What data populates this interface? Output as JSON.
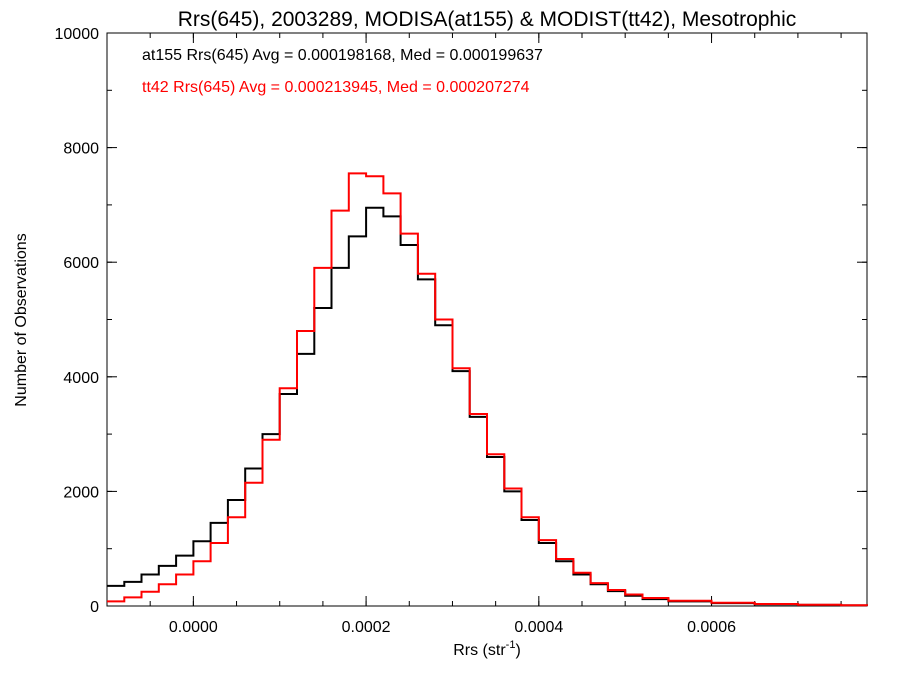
{
  "chart_data": {
    "type": "line",
    "title": "Rrs(645), 2003289, MODISA(at155) & MODIST(tt42), Mesotrophic",
    "xlabel": "Rrs (str",
    "xlabel_sup": "-1",
    "xlabel_end": ")",
    "ylabel": "Number of Observations",
    "xlim": [
      -0.0001,
      0.00078
    ],
    "ylim": [
      0,
      10000
    ],
    "x_ticks": [
      0.0,
      0.0002,
      0.0004,
      0.0006
    ],
    "x_tick_labels": [
      "0.0000",
      "0.0002",
      "0.0004",
      "0.0006"
    ],
    "y_ticks": [
      0,
      2000,
      4000,
      6000,
      8000,
      10000
    ],
    "y_tick_labels": [
      "0",
      "2000",
      "4000",
      "6000",
      "8000",
      "10000"
    ],
    "grid": false,
    "legend_placement": "top-left",
    "step": true,
    "series": [
      {
        "name": "at155 Rrs(645) Avg = 0.000198168, Med = 0.000199637",
        "color": "#000000",
        "x": [
          -0.0001,
          -8e-05,
          -6e-05,
          -4e-05,
          -2e-05,
          0.0,
          2e-05,
          4e-05,
          6e-05,
          8e-05,
          0.0001,
          0.00012,
          0.00014,
          0.00016,
          0.00018,
          0.0002,
          0.00022,
          0.00024,
          0.00026,
          0.00028,
          0.0003,
          0.00032,
          0.00034,
          0.00036,
          0.00038,
          0.0004,
          0.00042,
          0.00044,
          0.00046,
          0.00048,
          0.0005,
          0.00052,
          0.00055,
          0.0006,
          0.00065,
          0.0007,
          0.00075,
          0.00078
        ],
        "values": [
          350,
          420,
          550,
          700,
          880,
          1130,
          1450,
          1850,
          2400,
          3000,
          3700,
          4400,
          5200,
          5900,
          6450,
          6950,
          6800,
          6300,
          5700,
          4900,
          4100,
          3300,
          2600,
          2000,
          1500,
          1100,
          780,
          550,
          380,
          260,
          180,
          120,
          80,
          50,
          30,
          20,
          10,
          5
        ]
      },
      {
        "name": "tt42 Rrs(645) Avg = 0.000213945, Med = 0.000207274",
        "color": "#ff0000",
        "x": [
          -0.0001,
          -8e-05,
          -6e-05,
          -4e-05,
          -2e-05,
          0.0,
          2e-05,
          4e-05,
          6e-05,
          8e-05,
          0.0001,
          0.00012,
          0.00014,
          0.00016,
          0.00018,
          0.0002,
          0.00022,
          0.00024,
          0.00026,
          0.00028,
          0.0003,
          0.00032,
          0.00034,
          0.00036,
          0.00038,
          0.0004,
          0.00042,
          0.00044,
          0.00046,
          0.00048,
          0.0005,
          0.00052,
          0.00055,
          0.0006,
          0.00065,
          0.0007,
          0.00075,
          0.00078
        ],
        "values": [
          80,
          150,
          250,
          380,
          550,
          780,
          1100,
          1550,
          2150,
          2900,
          3800,
          4800,
          5900,
          6900,
          7550,
          7500,
          7200,
          6500,
          5800,
          5000,
          4150,
          3350,
          2650,
          2050,
          1550,
          1150,
          820,
          580,
          400,
          280,
          200,
          140,
          90,
          55,
          35,
          22,
          12,
          6
        ]
      }
    ]
  }
}
